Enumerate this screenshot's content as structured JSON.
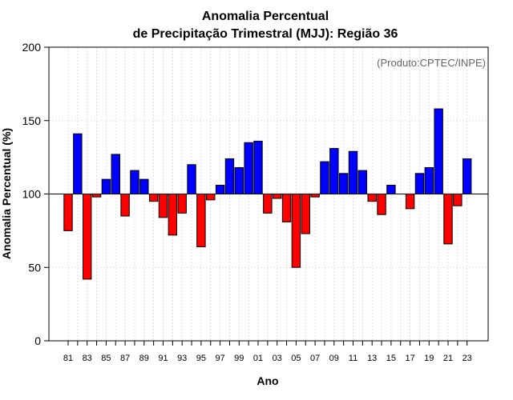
{
  "chart_data": {
    "type": "bar",
    "title": [
      "Anomalia Percentual",
      "de Precipitação Trimestral (MJJ): Região 36"
    ],
    "credit": "(Produto:CPTEC/INPE)",
    "xlabel": "Ano",
    "ylabel": "Anomalia Percentual (%)",
    "ylim": [
      0,
      200
    ],
    "yticks": [
      0,
      50,
      100,
      150,
      200
    ],
    "baseline": 100,
    "grid": true,
    "colors": {
      "above": "#0000ff",
      "below": "#ff0000",
      "edge": "#000000",
      "grid": "#d9d9d9"
    },
    "categories": [
      "81",
      "82",
      "83",
      "84",
      "85",
      "86",
      "87",
      "88",
      "89",
      "90",
      "91",
      "92",
      "93",
      "94",
      "95",
      "96",
      "97",
      "98",
      "99",
      "00",
      "01",
      "02",
      "03",
      "04",
      "05",
      "06",
      "07",
      "08",
      "09",
      "10",
      "11",
      "12",
      "13",
      "14",
      "15",
      "16",
      "17",
      "18",
      "19",
      "20",
      "21",
      "22",
      "23"
    ],
    "xtick_labels": [
      "81",
      "83",
      "85",
      "87",
      "89",
      "91",
      "93",
      "95",
      "97",
      "99",
      "01",
      "03",
      "05",
      "07",
      "09",
      "11",
      "13",
      "15",
      "17",
      "19",
      "21",
      "23"
    ],
    "values": [
      75,
      141,
      42,
      98,
      110,
      127,
      85,
      116,
      110,
      95,
      84,
      72,
      87,
      120,
      64,
      96,
      106,
      124,
      118,
      135,
      136,
      87,
      97,
      81,
      50,
      73,
      98,
      122,
      131,
      114,
      129,
      116,
      95,
      86,
      106,
      100,
      90,
      114,
      118,
      158,
      66,
      92,
      124
    ]
  }
}
